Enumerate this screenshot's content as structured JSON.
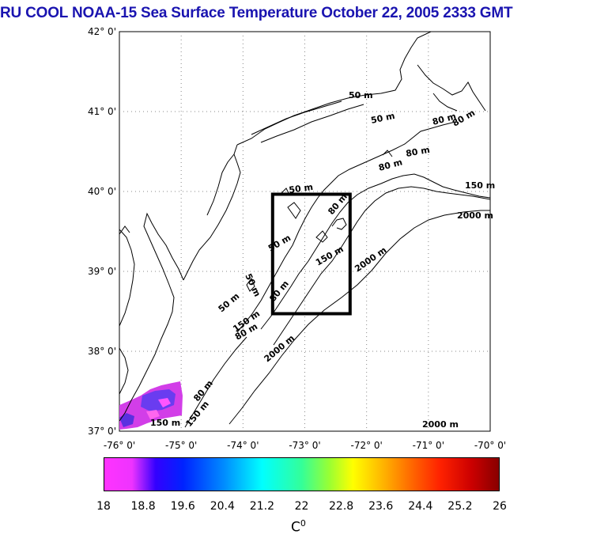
{
  "title": "RU COOL  NOAA-15 Sea Surface Temperature October 22, 2005 2333 GMT",
  "map": {
    "lat_labels": [
      "42° 0'",
      "41° 0'",
      "40° 0'",
      "39° 0'",
      "38° 0'",
      "37° 0'"
    ],
    "lon_labels": [
      "-76° 0'",
      "-75° 0'",
      "-74° 0'",
      "-73° 0'",
      "-72° 0'",
      "-71° 0'",
      "-70° 0'"
    ],
    "lat_range": [
      37,
      42
    ],
    "lon_range": [
      -76,
      -70
    ],
    "grid": "dotted",
    "contour_labels": [
      "50 m",
      "50 m",
      "50 m",
      "50 m",
      "50 m",
      "50 m",
      "80 m",
      "80 m",
      "80 m",
      "80 m",
      "80 m",
      "150 m",
      "150 m",
      "150 m",
      "150 m",
      "2000 m",
      "2000 m",
      "2000 m",
      "2000 m",
      "80 m",
      "80 m",
      "150 m",
      "80 m"
    ],
    "study_box": {
      "lon_min": -73.5,
      "lon_max": -72.3,
      "lat_min": 38.5,
      "lat_max": 40.0
    },
    "sst_patch_color": "#cc33ff"
  },
  "colorbar": {
    "ticks": [
      "18",
      "18.8",
      "19.6",
      "20.4",
      "21.2",
      "22",
      "22.8",
      "23.6",
      "24.4",
      "25.2",
      "26"
    ],
    "unit": "C",
    "unit_sup": "0",
    "min": 18,
    "max": 26
  }
}
